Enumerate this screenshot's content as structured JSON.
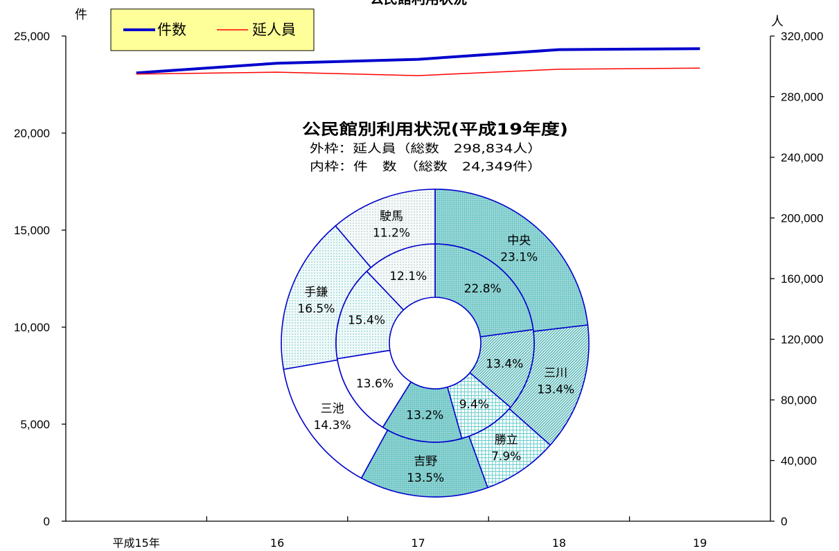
{
  "chart_data": [
    {
      "type": "line",
      "title": "公民館利用状況",
      "categories": [
        "平成15年",
        "16",
        "17",
        "18",
        "19"
      ],
      "y_left": {
        "label": "件",
        "ylim": [
          0,
          25000
        ],
        "ticks": [
          "0",
          "5,000",
          "10,000",
          "15,000",
          "20,000",
          "25,000"
        ]
      },
      "y_right": {
        "label": "人",
        "ylim": [
          0,
          320000
        ],
        "ticks": [
          "0",
          "40,000",
          "80,000",
          "120,000",
          "160,000",
          "200,000",
          "240,000",
          "280,000",
          "320,000"
        ]
      },
      "series": [
        {
          "name": "件数",
          "secondary_axis": false,
          "color": "#0000CC",
          "values": [
            23100,
            23600,
            23800,
            24300,
            24349
          ]
        },
        {
          "name": "延人員",
          "secondary_axis": true,
          "color": "#FF0000",
          "values": [
            294900,
            296200,
            293900,
            298100,
            298834
          ]
        }
      ],
      "legend": "top-left",
      "legend_color": "#FFFF99",
      "grid": false
    },
    {
      "type": "pie",
      "title": "公民館別利用状況(平成19年度)",
      "subtitle": [
        "外枠：延人員（総数　298,834人）",
        "内枠：件　数　（総数　24,349件）"
      ],
      "categories": [
        "中央",
        "三川",
        "勝立",
        "吉野",
        "三池",
        "手鎌",
        "駛馬"
      ],
      "unit": "%",
      "outer_ring": [
        23.1,
        13.4,
        7.9,
        13.5,
        14.3,
        16.5,
        11.2
      ],
      "inner_ring": [
        22.8,
        13.4,
        9.4,
        13.2,
        13.6,
        15.4,
        12.1
      ],
      "colors": [
        "#4DB8B8",
        "#33A6A6",
        "#66CCCC",
        "#4DB8B8",
        "#FFFFFF",
        "#5CB8B8",
        "#99B8B8"
      ],
      "border_color": "#0000CC"
    }
  ]
}
